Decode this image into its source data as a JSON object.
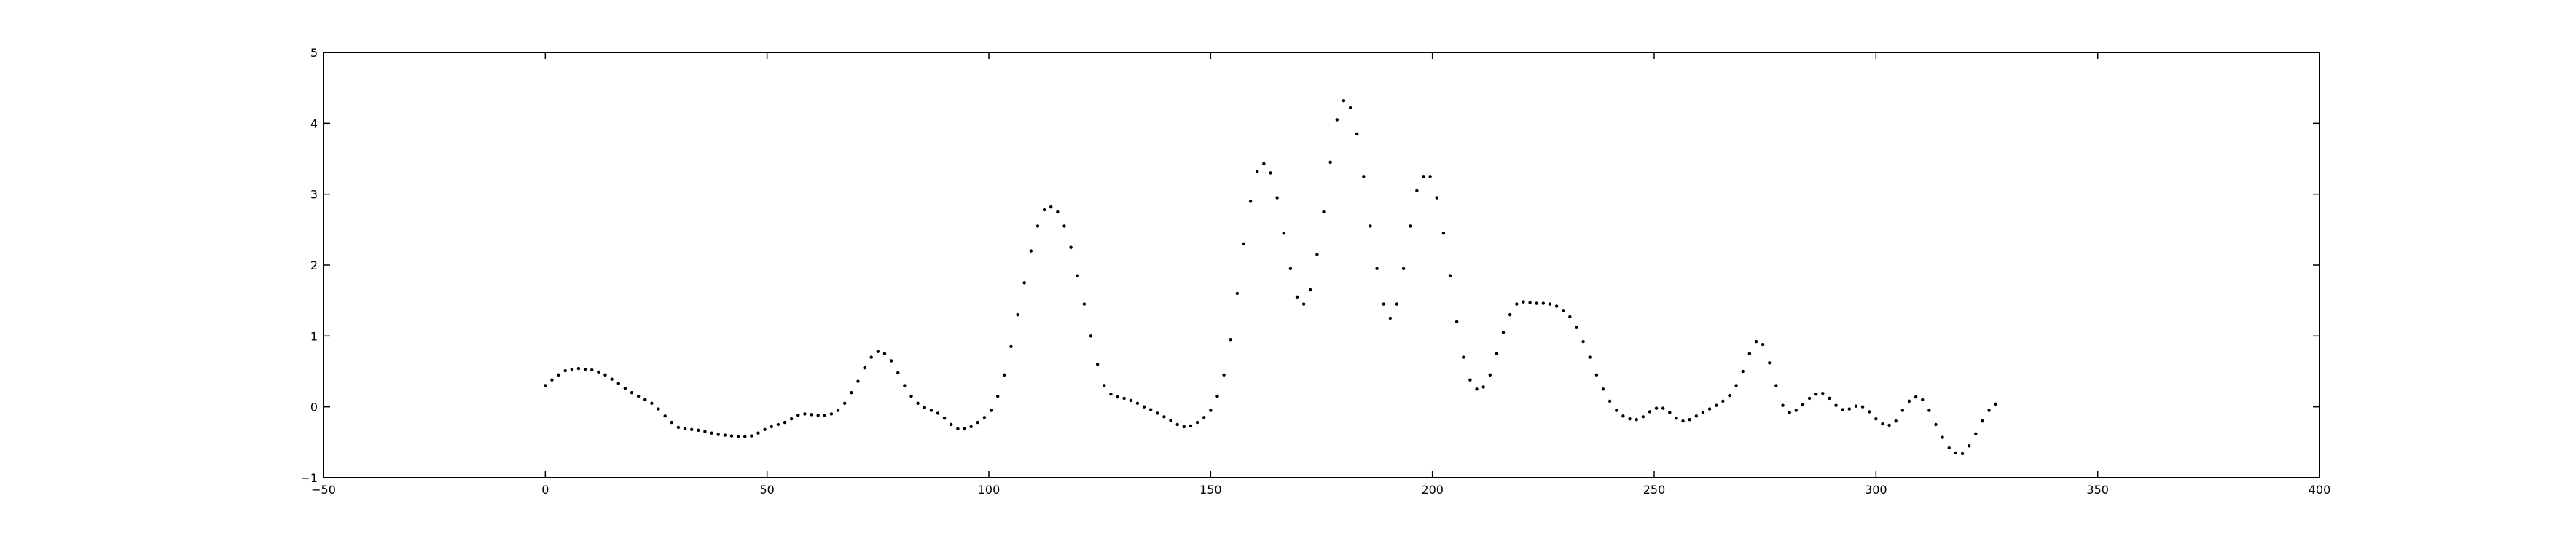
{
  "chart_data": {
    "type": "scatter",
    "title": "",
    "xlabel": "",
    "ylabel": "",
    "xlim": [
      -50,
      400
    ],
    "ylim": [
      -1,
      5
    ],
    "xticks": [
      -50,
      0,
      50,
      100,
      150,
      200,
      250,
      300,
      350,
      400
    ],
    "yticks": [
      -1,
      0,
      1,
      2,
      3,
      4,
      5
    ],
    "xtick_labels": [
      "−50",
      "0",
      "50",
      "100",
      "150",
      "200",
      "250",
      "300",
      "350",
      "400"
    ],
    "ytick_labels": [
      "−1",
      "0",
      "1",
      "2",
      "3",
      "4",
      "5"
    ],
    "grid": false,
    "marker_color": "#000000",
    "series": [
      {
        "x_start": 0,
        "x_step": 1.5,
        "values": [
          0.3,
          0.38,
          0.45,
          0.51,
          0.53,
          0.54,
          0.53,
          0.52,
          0.49,
          0.45,
          0.39,
          0.33,
          0.26,
          0.2,
          0.15,
          0.1,
          0.05,
          -0.03,
          -0.13,
          -0.22,
          -0.29,
          -0.31,
          -0.32,
          -0.33,
          -0.35,
          -0.37,
          -0.39,
          -0.4,
          -0.41,
          -0.42,
          -0.42,
          -0.41,
          -0.37,
          -0.32,
          -0.28,
          -0.25,
          -0.22,
          -0.17,
          -0.12,
          -0.1,
          -0.11,
          -0.12,
          -0.12,
          -0.1,
          -0.05,
          0.05,
          0.2,
          0.36,
          0.55,
          0.7,
          0.78,
          0.75,
          0.65,
          0.48,
          0.3,
          0.15,
          0.05,
          -0.01,
          -0.05,
          -0.09,
          -0.16,
          -0.25,
          -0.31,
          -0.31,
          -0.28,
          -0.22,
          -0.15,
          -0.05,
          0.15,
          0.45,
          0.85,
          1.3,
          1.75,
          2.2,
          2.55,
          2.78,
          2.82,
          2.75,
          2.55,
          2.25,
          1.85,
          1.45,
          1.0,
          0.6,
          0.3,
          0.18,
          0.14,
          0.12,
          0.09,
          0.05,
          0.0,
          -0.04,
          -0.09,
          -0.14,
          -0.19,
          -0.25,
          -0.28,
          -0.27,
          -0.22,
          -0.15,
          -0.05,
          0.15,
          0.45,
          0.95,
          1.6,
          2.3,
          2.9,
          3.32,
          3.43,
          3.3,
          2.95,
          2.45,
          1.95,
          1.55,
          1.45,
          1.65,
          2.15,
          2.75,
          3.45,
          4.05,
          4.32,
          4.22,
          3.85,
          3.25,
          2.55,
          1.95,
          1.45,
          1.25,
          1.45,
          1.95,
          2.55,
          3.05,
          3.25,
          3.25,
          2.95,
          2.45,
          1.85,
          1.2,
          0.7,
          0.38,
          0.25,
          0.28,
          0.45,
          0.75,
          1.05,
          1.3,
          1.45,
          1.48,
          1.47,
          1.46,
          1.46,
          1.45,
          1.42,
          1.36,
          1.27,
          1.12,
          0.92,
          0.7,
          0.45,
          0.25,
          0.08,
          -0.05,
          -0.13,
          -0.17,
          -0.18,
          -0.14,
          -0.07,
          -0.02,
          -0.02,
          -0.08,
          -0.16,
          -0.2,
          -0.18,
          -0.13,
          -0.08,
          -0.03,
          0.02,
          0.08,
          0.16,
          0.3,
          0.5,
          0.75,
          0.92,
          0.88,
          0.62,
          0.3,
          0.02,
          -0.08,
          -0.05,
          0.03,
          0.12,
          0.18,
          0.19,
          0.12,
          0.02,
          -0.04,
          -0.03,
          0.01,
          0.0,
          -0.07,
          -0.17,
          -0.24,
          -0.26,
          -0.2,
          -0.05,
          0.08,
          0.14,
          0.1,
          -0.05,
          -0.25,
          -0.43,
          -0.58,
          -0.65,
          -0.66,
          -0.55,
          -0.38,
          -0.2,
          -0.05,
          0.04
        ]
      }
    ]
  }
}
